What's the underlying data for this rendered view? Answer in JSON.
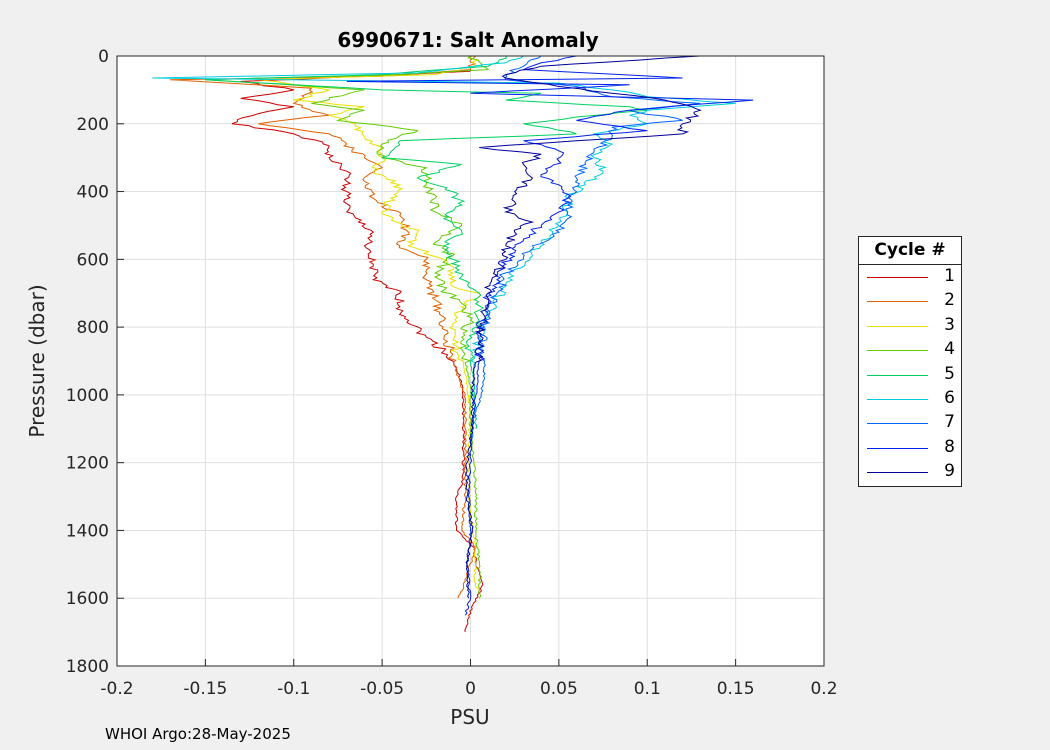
{
  "chart_data": {
    "type": "line",
    "title": "6990671: Salt Anomaly",
    "xlabel": "PSU",
    "ylabel": "Pressure (dbar)",
    "xlim": [
      -0.2,
      0.2
    ],
    "ylim": [
      1800,
      0
    ],
    "y_reversed": true,
    "grid": true,
    "xticks": [
      "-0.2",
      "-0.15",
      "-0.1",
      "-0.05",
      "0",
      "0.05",
      "0.1",
      "0.15",
      "0.2"
    ],
    "yticks": [
      "0",
      "200",
      "400",
      "600",
      "800",
      "1000",
      "1200",
      "1400",
      "1600",
      "1800"
    ],
    "legend": {
      "title": "Cycle #",
      "placement": "right"
    },
    "series": [
      {
        "name": "1",
        "color": "#cc0000",
        "points": [
          [
            0,
            45
          ],
          [
            -0.04,
            55
          ],
          [
            -0.13,
            75
          ],
          [
            -0.1,
            100
          ],
          [
            -0.13,
            125
          ],
          [
            -0.1,
            150
          ],
          [
            -0.12,
            170
          ],
          [
            -0.135,
            200
          ],
          [
            -0.1,
            230
          ],
          [
            -0.08,
            265
          ],
          [
            -0.08,
            300
          ],
          [
            -0.07,
            340
          ],
          [
            -0.07,
            370
          ],
          [
            -0.07,
            400
          ],
          [
            -0.07,
            460
          ],
          [
            -0.055,
            520
          ],
          [
            -0.06,
            560
          ],
          [
            -0.055,
            620
          ],
          [
            -0.055,
            660
          ],
          [
            -0.04,
            700
          ],
          [
            -0.04,
            740
          ],
          [
            -0.035,
            780
          ],
          [
            -0.025,
            830
          ],
          [
            -0.015,
            870
          ],
          [
            -0.01,
            900
          ],
          [
            -0.005,
            960
          ],
          [
            -0.004,
            1050
          ],
          [
            -0.004,
            1150
          ],
          [
            -0.004,
            1250
          ],
          [
            -0.008,
            1300
          ],
          [
            -0.008,
            1400
          ],
          [
            0.002,
            1450
          ],
          [
            0.003,
            1500
          ],
          [
            0.007,
            1560
          ],
          [
            -0.001,
            1650
          ],
          [
            -0.003,
            1700
          ]
        ]
      },
      {
        "name": "2",
        "color": "#e06000",
        "points": [
          [
            0.003,
            0
          ],
          [
            0,
            40
          ],
          [
            -0.05,
            60
          ],
          [
            -0.17,
            70
          ],
          [
            -0.09,
            95
          ],
          [
            -0.1,
            140
          ],
          [
            -0.08,
            175
          ],
          [
            -0.12,
            200
          ],
          [
            -0.08,
            230
          ],
          [
            -0.07,
            260
          ],
          [
            -0.06,
            300
          ],
          [
            -0.05,
            330
          ],
          [
            -0.06,
            370
          ],
          [
            -0.055,
            420
          ],
          [
            -0.04,
            470
          ],
          [
            -0.035,
            520
          ],
          [
            -0.04,
            560
          ],
          [
            -0.025,
            600
          ],
          [
            -0.025,
            660
          ],
          [
            -0.02,
            720
          ],
          [
            -0.015,
            780
          ],
          [
            -0.015,
            830
          ],
          [
            -0.01,
            880
          ],
          [
            -0.008,
            940
          ],
          [
            -0.003,
            1000
          ],
          [
            -0.003,
            1100
          ],
          [
            -0.003,
            1200
          ],
          [
            -0.003,
            1300
          ],
          [
            -0.005,
            1400
          ],
          [
            0.003,
            1450
          ],
          [
            -0.003,
            1550
          ],
          [
            -0.007,
            1600
          ]
        ]
      },
      {
        "name": "3",
        "color": "#e8e000",
        "points": [
          [
            0.001,
            0
          ],
          [
            0.002,
            30
          ],
          [
            -0.02,
            55
          ],
          [
            -0.12,
            70
          ],
          [
            -0.08,
            100
          ],
          [
            -0.1,
            130
          ],
          [
            -0.06,
            150
          ],
          [
            -0.08,
            175
          ],
          [
            -0.065,
            200
          ],
          [
            -0.06,
            240
          ],
          [
            -0.05,
            270
          ],
          [
            -0.05,
            300
          ],
          [
            -0.055,
            340
          ],
          [
            -0.04,
            380
          ],
          [
            -0.045,
            420
          ],
          [
            -0.05,
            460
          ],
          [
            -0.03,
            520
          ],
          [
            -0.035,
            560
          ],
          [
            -0.015,
            600
          ],
          [
            -0.01,
            640
          ],
          [
            -0.01,
            680
          ],
          [
            0.005,
            700
          ],
          [
            -0.005,
            740
          ],
          [
            -0.01,
            790
          ],
          [
            -0.01,
            850
          ],
          [
            -0.004,
            900
          ],
          [
            -0.002,
            950
          ],
          [
            0,
            1050
          ],
          [
            -0.001,
            1150
          ],
          [
            -0.001,
            1250
          ],
          [
            0,
            1350
          ],
          [
            0.003,
            1450
          ],
          [
            0.003,
            1500
          ],
          [
            0.002,
            1550
          ],
          [
            0.005,
            1580
          ]
        ]
      },
      {
        "name": "4",
        "color": "#60cc00",
        "points": [
          [
            0,
            0
          ],
          [
            0.01,
            40
          ],
          [
            -0.04,
            55
          ],
          [
            -0.15,
            70
          ],
          [
            -0.06,
            100
          ],
          [
            -0.09,
            140
          ],
          [
            -0.06,
            160
          ],
          [
            -0.075,
            190
          ],
          [
            -0.03,
            220
          ],
          [
            -0.05,
            260
          ],
          [
            -0.05,
            300
          ],
          [
            -0.025,
            330
          ],
          [
            -0.025,
            380
          ],
          [
            -0.02,
            420
          ],
          [
            -0.02,
            460
          ],
          [
            -0.005,
            500
          ],
          [
            -0.02,
            550
          ],
          [
            -0.01,
            590
          ],
          [
            -0.02,
            640
          ],
          [
            -0.015,
            690
          ],
          [
            -0.005,
            730
          ],
          [
            0,
            780
          ],
          [
            -0.005,
            830
          ],
          [
            -0.003,
            880
          ],
          [
            -0.002,
            930
          ],
          [
            0,
            980
          ],
          [
            0,
            1100
          ],
          [
            0.002,
            1200
          ],
          [
            0.003,
            1300
          ],
          [
            0.003,
            1400
          ],
          [
            0.005,
            1500
          ],
          [
            0.005,
            1600
          ]
        ]
      },
      {
        "name": "5",
        "color": "#00d060",
        "points": [
          [
            0.02,
            0
          ],
          [
            0.01,
            30
          ],
          [
            -0.05,
            55
          ],
          [
            -0.15,
            70
          ],
          [
            -0.05,
            100
          ],
          [
            0.04,
            110
          ],
          [
            0.02,
            130
          ],
          [
            0.09,
            150
          ],
          [
            0.1,
            160
          ],
          [
            0.06,
            180
          ],
          [
            0.03,
            200
          ],
          [
            0.06,
            230
          ],
          [
            -0.04,
            250
          ],
          [
            -0.05,
            300
          ],
          [
            -0.005,
            320
          ],
          [
            -0.03,
            360
          ],
          [
            -0.01,
            400
          ],
          [
            -0.005,
            440
          ],
          [
            -0.015,
            480
          ],
          [
            -0.005,
            520
          ],
          [
            -0.015,
            560
          ],
          [
            -0.01,
            600
          ],
          [
            -0.005,
            650
          ],
          [
            0.005,
            700
          ],
          [
            0.005,
            750
          ],
          [
            0.003,
            800
          ],
          [
            -0.002,
            850
          ],
          [
            0,
            900
          ],
          [
            0.002,
            950
          ],
          [
            0.002,
            1000
          ],
          [
            0.003,
            1100
          ]
        ]
      },
      {
        "name": "6",
        "color": "#00ccdd",
        "points": [
          [
            0.03,
            0
          ],
          [
            0.02,
            20
          ],
          [
            -0.03,
            50
          ],
          [
            -0.18,
            65
          ],
          [
            0.05,
            80
          ],
          [
            0.08,
            100
          ],
          [
            0.1,
            120
          ],
          [
            0.15,
            140
          ],
          [
            0.1,
            160
          ],
          [
            0.09,
            175
          ],
          [
            0.1,
            200
          ],
          [
            0.07,
            230
          ],
          [
            0.08,
            260
          ],
          [
            0.07,
            300
          ],
          [
            0.075,
            340
          ],
          [
            0.065,
            380
          ],
          [
            0.055,
            420
          ],
          [
            0.055,
            460
          ],
          [
            0.05,
            500
          ],
          [
            0.04,
            550
          ],
          [
            0.035,
            590
          ],
          [
            0.025,
            630
          ],
          [
            0.02,
            680
          ],
          [
            0.013,
            730
          ],
          [
            0.008,
            780
          ],
          [
            0.005,
            830
          ],
          [
            0.003,
            880
          ],
          [
            0.002,
            930
          ],
          [
            0.002,
            980
          ],
          [
            0.002,
            1050
          ]
        ]
      },
      {
        "name": "7",
        "color": "#0066ff",
        "points": [
          [
            0.04,
            0
          ],
          [
            0.03,
            30
          ],
          [
            0.02,
            55
          ],
          [
            0.02,
            70
          ],
          [
            0.06,
            90
          ],
          [
            0.08,
            120
          ],
          [
            0.13,
            140
          ],
          [
            0.09,
            160
          ],
          [
            0.12,
            190
          ],
          [
            0.08,
            210
          ],
          [
            0.08,
            240
          ],
          [
            0.07,
            280
          ],
          [
            0.065,
            320
          ],
          [
            0.06,
            360
          ],
          [
            0.06,
            400
          ],
          [
            0.055,
            440
          ],
          [
            0.055,
            480
          ],
          [
            0.05,
            520
          ],
          [
            0.035,
            560
          ],
          [
            0.03,
            600
          ],
          [
            0.02,
            640
          ],
          [
            0.015,
            700
          ],
          [
            0.01,
            750
          ],
          [
            0.008,
            800
          ],
          [
            0.007,
            850
          ],
          [
            0.008,
            900
          ],
          [
            0.008,
            950
          ],
          [
            0.006,
            1000
          ],
          [
            0.003,
            1050
          ],
          [
            0,
            1150
          ]
        ]
      },
      {
        "name": "8",
        "color": "#0022ee",
        "points": [
          [
            0.06,
            0
          ],
          [
            0.04,
            20
          ],
          [
            0.03,
            40
          ],
          [
            0.12,
            65
          ],
          [
            -0.07,
            75
          ],
          [
            0.09,
            85
          ],
          [
            0,
            110
          ],
          [
            0.16,
            130
          ],
          [
            0.09,
            160
          ],
          [
            0.06,
            190
          ],
          [
            0.1,
            220
          ],
          [
            0.03,
            250
          ],
          [
            0.05,
            280
          ],
          [
            0.05,
            310
          ],
          [
            0.04,
            350
          ],
          [
            0.05,
            380
          ],
          [
            0.055,
            420
          ],
          [
            0.05,
            460
          ],
          [
            0.04,
            500
          ],
          [
            0.03,
            540
          ],
          [
            0.025,
            580
          ],
          [
            0.018,
            620
          ],
          [
            0.015,
            660
          ],
          [
            0.01,
            700
          ],
          [
            0.008,
            750
          ],
          [
            0.005,
            800
          ],
          [
            0.005,
            850
          ],
          [
            0.005,
            900
          ],
          [
            0.004,
            950
          ],
          [
            0.003,
            1000
          ],
          [
            0.001,
            1100
          ],
          [
            0,
            1200
          ],
          [
            -0.001,
            1300
          ],
          [
            0,
            1400
          ],
          [
            -0.002,
            1500
          ],
          [
            0,
            1600
          ],
          [
            -0.003,
            1650
          ]
        ]
      },
      {
        "name": "9",
        "color": "#000099",
        "points": [
          [
            0.13,
            0
          ],
          [
            0.04,
            30
          ],
          [
            0.02,
            55
          ],
          [
            0.02,
            65
          ],
          [
            0.05,
            90
          ],
          [
            0.08,
            110
          ],
          [
            0.11,
            130
          ],
          [
            0.13,
            160
          ],
          [
            0.12,
            200
          ],
          [
            0.12,
            230
          ],
          [
            0.06,
            250
          ],
          [
            0.005,
            270
          ],
          [
            0.04,
            290
          ],
          [
            0.03,
            320
          ],
          [
            0.035,
            360
          ],
          [
            0.025,
            400
          ],
          [
            0.025,
            430
          ],
          [
            0.02,
            460
          ],
          [
            0.035,
            490
          ],
          [
            0.025,
            520
          ],
          [
            0.02,
            560
          ],
          [
            0.02,
            600
          ],
          [
            0.012,
            660
          ],
          [
            0.01,
            700
          ],
          [
            0.007,
            760
          ],
          [
            0.006,
            820
          ],
          [
            0.004,
            880
          ],
          [
            0.002,
            940
          ],
          [
            0.001,
            1000
          ],
          [
            0.001,
            1100
          ],
          [
            -0.002,
            1200
          ],
          [
            -0.002,
            1300
          ],
          [
            0.001,
            1400
          ],
          [
            -0.002,
            1500
          ],
          [
            -0.001,
            1600
          ]
        ]
      }
    ]
  },
  "footer": "WHOI Argo:28-May-2025"
}
